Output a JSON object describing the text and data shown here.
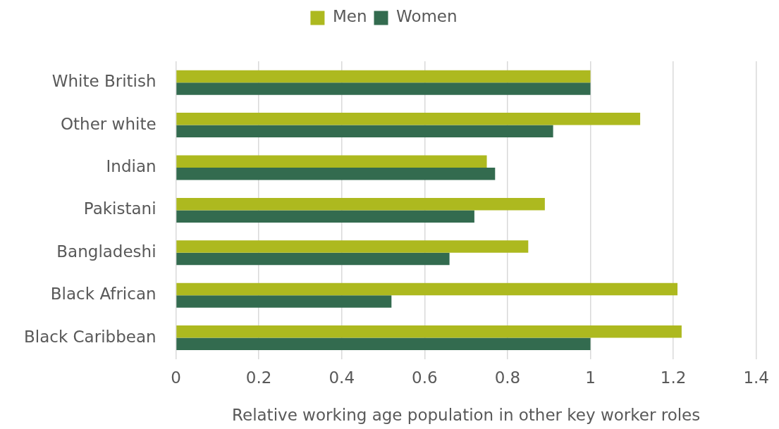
{
  "chart_data": {
    "type": "bar",
    "orientation": "horizontal",
    "xlabel": "Relative working age population in other key worker roles",
    "categories": [
      "White British",
      "Other white",
      "Indian",
      "Pakistani",
      "Bangladeshi",
      "Black African",
      "Black Caribbean"
    ],
    "series": [
      {
        "name": "Men",
        "color": "#adb91f",
        "values": [
          1.0,
          1.12,
          0.75,
          0.89,
          0.85,
          1.21,
          1.22
        ]
      },
      {
        "name": "Women",
        "color": "#336b4f",
        "values": [
          1.0,
          0.91,
          0.77,
          0.72,
          0.66,
          0.52,
          1.0
        ]
      }
    ],
    "xlim": [
      0,
      1.4
    ],
    "xticks": [
      0,
      0.2,
      0.4,
      0.6,
      0.8,
      1,
      1.2,
      1.4
    ],
    "grid": "x",
    "legend": "top"
  }
}
